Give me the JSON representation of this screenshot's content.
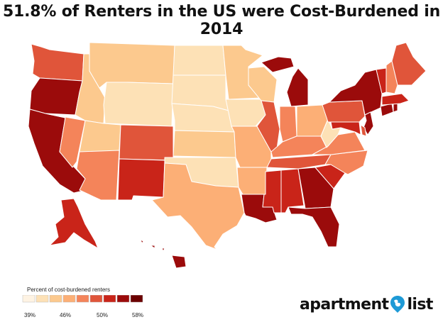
{
  "title": "51.8% of Renters in the US were Cost-Burdened in 2014",
  "legend": {
    "title": "Percent of cost-burdened renters",
    "tick_labels": [
      "39%",
      "46%",
      "50%",
      "58%"
    ],
    "colors": [
      "#fef3e3",
      "#fde1b6",
      "#fcc98e",
      "#fcaf76",
      "#f4845a",
      "#e0553a",
      "#c92419",
      "#9b0b0b",
      "#6b0000"
    ]
  },
  "logo": {
    "left_text": "apartment",
    "right_text": "list",
    "icon": "map-pin-icon",
    "pin_color": "#1e9ad6"
  },
  "states": {
    "WA": 5,
    "OR": 7,
    "CA": 7,
    "NV": 4,
    "ID": 2,
    "MT": 2,
    "WY": 1,
    "UT": 2,
    "AZ": 4,
    "CO": 5,
    "NM": 6,
    "ND": 1,
    "SD": 1,
    "NE": 1,
    "KS": 2,
    "OK": 1,
    "TX": 3,
    "MN": 2,
    "IA": 1,
    "MO": 3,
    "AR": 3,
    "LA": 7,
    "WI": 2,
    "IL": 5,
    "MI": 7,
    "IN": 4,
    "OH": 3,
    "KY": 4,
    "TN": 5,
    "MS": 6,
    "AL": 6,
    "GA": 7,
    "FL": 7,
    "SC": 6,
    "NC": 4,
    "VA": 4,
    "WV": 1,
    "PA": 5,
    "NY": 7,
    "NJ": 7,
    "DE": 5,
    "MD": 6,
    "CT": 7,
    "RI": 7,
    "MA": 6,
    "VT": 6,
    "NH": 4,
    "ME": 5,
    "AK": 6,
    "HI": 7
  }
}
